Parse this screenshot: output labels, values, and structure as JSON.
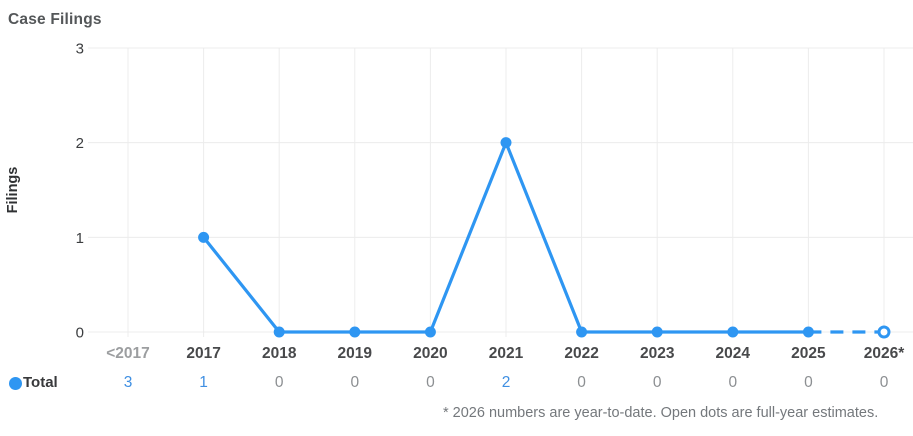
{
  "title": "Case Filings",
  "legend": {
    "series_label": "Total"
  },
  "footnote": "* 2026 numbers are year-to-date. Open dots are full-year estimates.",
  "colors": {
    "line": "#2E96F2",
    "grid": "#ECECEC",
    "y_tick_text": "#3B3D3F",
    "x_tick_text": "#48494B",
    "x_tick_muted": "#9C9EA0",
    "value_positive": "#3F8FE2",
    "value_zero": "#8C8F92",
    "title_text": "#545759",
    "footnote_text": "#74787C"
  },
  "chart_data": {
    "type": "line",
    "title": "Case Filings",
    "xlabel": "",
    "ylabel": "Filings",
    "categories": [
      "<2017",
      "2017",
      "2018",
      "2019",
      "2020",
      "2021",
      "2022",
      "2023",
      "2024",
      "2025",
      "2026*"
    ],
    "series": [
      {
        "name": "Total",
        "values": [
          3,
          1,
          0,
          0,
          0,
          2,
          0,
          0,
          0,
          0,
          0
        ],
        "plotted": [
          null,
          1,
          0,
          0,
          0,
          2,
          0,
          0,
          0,
          0,
          0
        ],
        "estimate_last": true
      }
    ],
    "yticks": [
      0,
      1,
      2,
      3
    ],
    "ylim": [
      0,
      3
    ],
    "grid": true,
    "legend_position": "bottom-left",
    "marker_style": "filled dots; final 2026 point is an open dot reached by a dashed segment; no dot for <2017"
  }
}
